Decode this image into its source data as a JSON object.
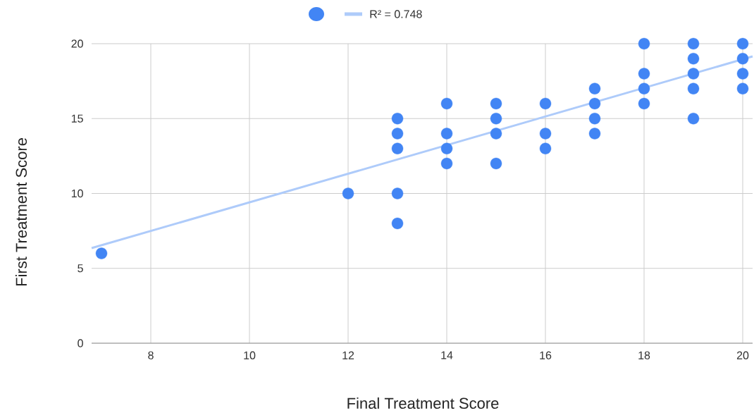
{
  "chart_data": {
    "type": "scatter",
    "xlabel": "Final Treatment Score",
    "ylabel": "First Treatment Score",
    "xlim": [
      6.8,
      20.2
    ],
    "ylim": [
      0,
      20
    ],
    "xticks": [
      8,
      10,
      12,
      14,
      16,
      18,
      20
    ],
    "yticks": [
      0,
      5,
      10,
      15,
      20
    ],
    "grid": true,
    "legend": "top",
    "marker": "circle",
    "series": [
      {
        "color": "#4285f4",
        "x": [
          7,
          12,
          13,
          13,
          13,
          13,
          13,
          14,
          14,
          14,
          14,
          15,
          15,
          15,
          15,
          16,
          16,
          16,
          17,
          17,
          17,
          17,
          18,
          18,
          18,
          18,
          19,
          19,
          19,
          19,
          19,
          20,
          20,
          20,
          20
        ],
        "values": [
          6,
          10,
          15,
          14,
          13,
          10,
          8,
          16,
          14,
          13,
          12,
          16,
          15,
          14,
          12,
          16,
          14,
          13,
          17,
          16,
          15,
          14,
          20,
          18,
          17,
          16,
          20,
          19,
          18,
          17,
          15,
          20,
          19,
          18,
          17
        ]
      },
      {
        "type": "line",
        "name": "R² = 0.748",
        "color": "#aecbfa",
        "line_style": "solid",
        "marker": "none",
        "x": [
          6.8,
          20.2
        ],
        "values": [
          6.35,
          19.15
        ]
      }
    ]
  }
}
